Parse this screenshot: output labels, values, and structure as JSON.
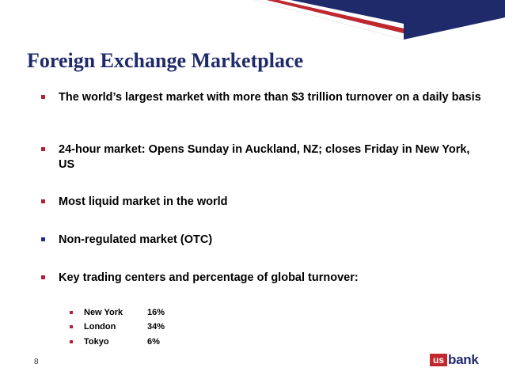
{
  "slide": {
    "title": "Foreign Exchange Marketplace",
    "page_number": "8"
  },
  "bullets": [
    {
      "text": "The world’s largest market with more than $3 trillion turnover on a daily basis",
      "marker_color": "#b32034"
    },
    {
      "text": "24-hour market: Opens Sunday in Auckland, NZ; closes Friday in New York, US",
      "marker_color": "#b32034"
    },
    {
      "text": "Most liquid market in the world",
      "marker_color": "#b32034"
    },
    {
      "text": "Non-regulated market (OTC)",
      "marker_color": "#1f2a8a"
    },
    {
      "text": "Key trading centers and percentage of global turnover:",
      "marker_color": "#b32034"
    }
  ],
  "trading_centers": [
    {
      "city": "New York",
      "share": "16%"
    },
    {
      "city": "London",
      "share": "34%"
    },
    {
      "city": "Tokyo",
      "share": "6%"
    }
  ],
  "logo": {
    "us": "us",
    "bank": "bank"
  },
  "colors": {
    "title": "#1f2a6b",
    "accent_red": "#b32034",
    "accent_blue": "#1f2a8a"
  }
}
